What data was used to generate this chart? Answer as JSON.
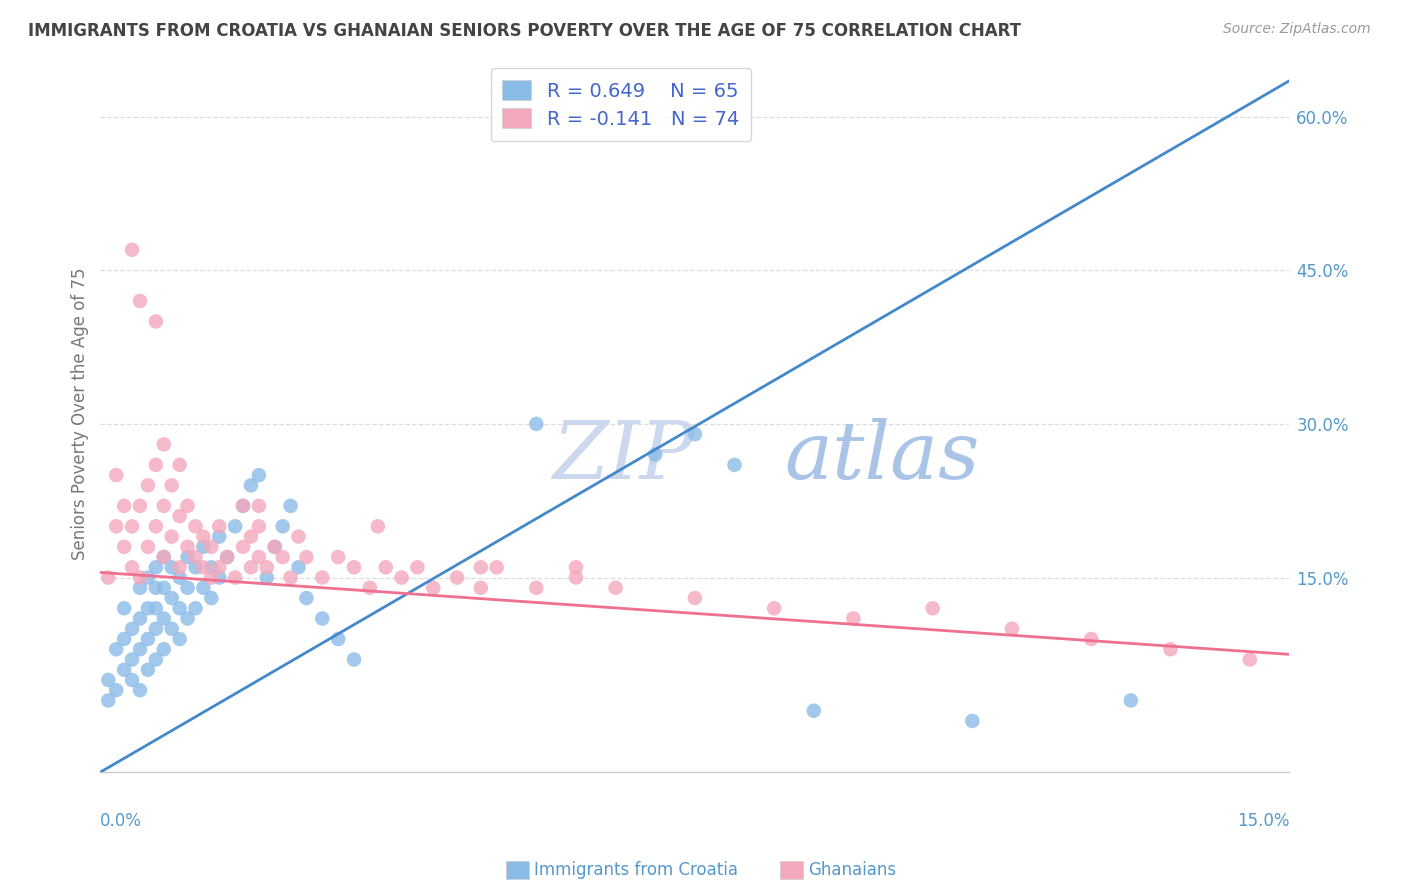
{
  "title": "IMMIGRANTS FROM CROATIA VS GHANAIAN SENIORS POVERTY OVER THE AGE OF 75 CORRELATION CHART",
  "source": "Source: ZipAtlas.com",
  "ylabel": "Seniors Poverty Over the Age of 75",
  "x_min": 0.0,
  "x_max": 0.15,
  "y_min": -0.04,
  "y_max": 0.66,
  "croatia_color": "#8bbce8",
  "ghana_color": "#f4a8bc",
  "line_croatia_color": "#4488cc",
  "line_ghana_color": "#f07090",
  "legend_text_color": "#4466cc",
  "croatia_R": 0.649,
  "croatia_N": 65,
  "ghana_R": -0.141,
  "ghana_N": 74,
  "background_color": "#ffffff",
  "grid_color": "#dddddd",
  "tick_label_color": "#5599cc",
  "title_color": "#444444",
  "watermark_zip_color": "#ccd8ee",
  "watermark_atlas_color": "#aac4e8",
  "croatia_scatter_x": [
    0.001,
    0.001,
    0.002,
    0.002,
    0.003,
    0.003,
    0.003,
    0.004,
    0.004,
    0.004,
    0.005,
    0.005,
    0.005,
    0.005,
    0.006,
    0.006,
    0.006,
    0.006,
    0.007,
    0.007,
    0.007,
    0.007,
    0.007,
    0.008,
    0.008,
    0.008,
    0.008,
    0.009,
    0.009,
    0.009,
    0.01,
    0.01,
    0.01,
    0.011,
    0.011,
    0.011,
    0.012,
    0.012,
    0.013,
    0.013,
    0.014,
    0.014,
    0.015,
    0.015,
    0.016,
    0.017,
    0.018,
    0.019,
    0.02,
    0.021,
    0.022,
    0.023,
    0.024,
    0.025,
    0.026,
    0.028,
    0.03,
    0.032,
    0.055,
    0.07,
    0.075,
    0.08,
    0.09,
    0.11,
    0.13
  ],
  "croatia_scatter_y": [
    0.03,
    0.05,
    0.04,
    0.08,
    0.06,
    0.09,
    0.12,
    0.05,
    0.07,
    0.1,
    0.04,
    0.08,
    0.11,
    0.14,
    0.06,
    0.09,
    0.12,
    0.15,
    0.07,
    0.1,
    0.12,
    0.14,
    0.16,
    0.08,
    0.11,
    0.14,
    0.17,
    0.1,
    0.13,
    0.16,
    0.09,
    0.12,
    0.15,
    0.11,
    0.14,
    0.17,
    0.12,
    0.16,
    0.14,
    0.18,
    0.13,
    0.16,
    0.15,
    0.19,
    0.17,
    0.2,
    0.22,
    0.24,
    0.25,
    0.15,
    0.18,
    0.2,
    0.22,
    0.16,
    0.13,
    0.11,
    0.09,
    0.07,
    0.3,
    0.27,
    0.29,
    0.26,
    0.02,
    0.01,
    0.03
  ],
  "ghana_scatter_x": [
    0.001,
    0.002,
    0.002,
    0.003,
    0.003,
    0.004,
    0.004,
    0.005,
    0.005,
    0.005,
    0.006,
    0.006,
    0.007,
    0.007,
    0.007,
    0.008,
    0.008,
    0.008,
    0.009,
    0.009,
    0.01,
    0.01,
    0.01,
    0.011,
    0.011,
    0.012,
    0.012,
    0.013,
    0.013,
    0.014,
    0.014,
    0.015,
    0.015,
    0.016,
    0.017,
    0.018,
    0.018,
    0.019,
    0.019,
    0.02,
    0.02,
    0.021,
    0.022,
    0.023,
    0.024,
    0.025,
    0.026,
    0.028,
    0.03,
    0.032,
    0.034,
    0.036,
    0.038,
    0.04,
    0.042,
    0.045,
    0.048,
    0.05,
    0.055,
    0.06,
    0.065,
    0.075,
    0.085,
    0.095,
    0.105,
    0.115,
    0.125,
    0.135,
    0.145,
    0.004,
    0.02,
    0.035,
    0.048,
    0.06
  ],
  "ghana_scatter_y": [
    0.15,
    0.2,
    0.25,
    0.18,
    0.22,
    0.16,
    0.2,
    0.15,
    0.22,
    0.42,
    0.18,
    0.24,
    0.2,
    0.26,
    0.4,
    0.17,
    0.22,
    0.28,
    0.19,
    0.24,
    0.16,
    0.21,
    0.26,
    0.18,
    0.22,
    0.17,
    0.2,
    0.16,
    0.19,
    0.15,
    0.18,
    0.16,
    0.2,
    0.17,
    0.15,
    0.18,
    0.22,
    0.16,
    0.19,
    0.17,
    0.2,
    0.16,
    0.18,
    0.17,
    0.15,
    0.19,
    0.17,
    0.15,
    0.17,
    0.16,
    0.14,
    0.16,
    0.15,
    0.16,
    0.14,
    0.15,
    0.14,
    0.16,
    0.14,
    0.15,
    0.14,
    0.13,
    0.12,
    0.11,
    0.12,
    0.1,
    0.09,
    0.08,
    0.07,
    0.47,
    0.22,
    0.2,
    0.16,
    0.16
  ],
  "croatia_line_y0": -0.04,
  "croatia_line_y1": 0.635,
  "ghana_line_y0": 0.155,
  "ghana_line_y1": 0.075,
  "ytick_vals": [
    0.15,
    0.3,
    0.45,
    0.6
  ],
  "ytick_labels": [
    "15.0%",
    "30.0%",
    "45.0%",
    "60.0%"
  ]
}
